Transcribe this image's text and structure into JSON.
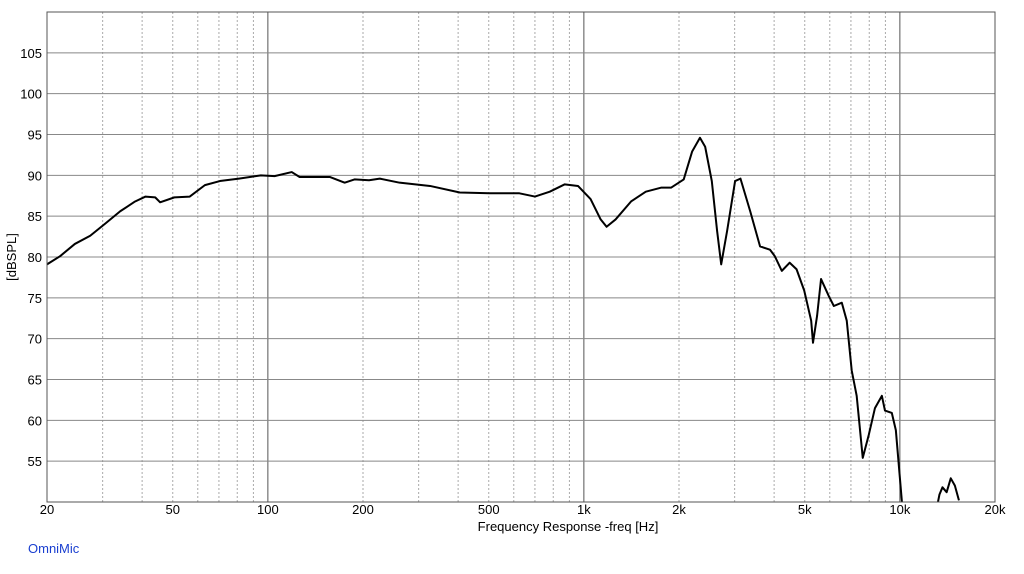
{
  "chart_data": {
    "type": "line",
    "xlabel": "Frequency Response -freq [Hz]",
    "ylabel": "[dBSPL]",
    "footer": "OmniMic",
    "xscale": "log",
    "xlim": [
      20,
      20000
    ],
    "ylim": [
      50,
      110
    ],
    "xticks": [
      20,
      50,
      100,
      200,
      500,
      {
        "value": 1000,
        "label": "1k"
      },
      {
        "value": 2000,
        "label": "2k"
      },
      {
        "value": 5000,
        "label": "5k"
      },
      {
        "value": 10000,
        "label": "10k"
      },
      {
        "value": 20000,
        "label": "20k"
      }
    ],
    "xminor": [
      30,
      40,
      60,
      70,
      80,
      90,
      300,
      400,
      600,
      700,
      800,
      900,
      3000,
      4000,
      6000,
      7000,
      8000,
      9000
    ],
    "xmajor_grid": [
      100,
      1000,
      10000
    ],
    "yticks": [
      55,
      60,
      65,
      70,
      75,
      80,
      85,
      90,
      95,
      100,
      105
    ],
    "grid": true,
    "series": [
      {
        "color": "#000000",
        "x": [
          20,
          22,
          24.5,
          27.4,
          30.6,
          34.1,
          38,
          41,
          44,
          45.6,
          50.6,
          56.6,
          63.2,
          70.5,
          81,
          95,
          105,
          119,
          126,
          157,
          175,
          188,
          209,
          226,
          261,
          326,
          405,
          503,
          625,
          700,
          780,
          870,
          958,
          1050,
          1130,
          1180,
          1260,
          1410,
          1570,
          1760,
          1890,
          2070,
          2200,
          2330,
          2420,
          2540,
          2640,
          2720,
          2840,
          3010,
          3130,
          3360,
          3610,
          3880,
          4020,
          4230,
          4480,
          4710,
          4980,
          5240,
          5310,
          5470,
          5630,
          5960,
          6180,
          6550,
          6790,
          7040,
          7300,
          7630,
          7970,
          8340,
          8770,
          8970,
          9430,
          9710,
          10150,
          12000,
          13200,
          13340,
          13640,
          14060,
          14490,
          14930,
          15380
        ],
        "values": [
          79.1,
          80.1,
          81.6,
          82.6,
          84.1,
          85.6,
          86.8,
          87.4,
          87.3,
          86.7,
          87.3,
          87.4,
          88.8,
          89.3,
          89.6,
          90.0,
          89.9,
          90.4,
          89.8,
          89.8,
          89.1,
          89.5,
          89.4,
          89.6,
          89.1,
          88.7,
          87.9,
          87.8,
          87.8,
          87.4,
          88.0,
          88.9,
          88.7,
          87.1,
          84.6,
          83.7,
          84.6,
          86.8,
          88.0,
          88.5,
          88.5,
          89.5,
          92.9,
          94.6,
          93.5,
          89.3,
          83.2,
          79.1,
          83.2,
          89.3,
          89.6,
          85.6,
          81.3,
          80.9,
          80.1,
          78.3,
          79.3,
          78.5,
          75.9,
          72.2,
          69.5,
          72.8,
          77.3,
          75.2,
          74.0,
          74.4,
          72.2,
          66.1,
          63.0,
          55.4,
          58.2,
          61.5,
          63.0,
          61.2,
          60.9,
          58.8,
          50.0,
          null,
          50.0,
          50.9,
          51.8,
          51.2,
          52.9,
          52.0,
          50.2
        ]
      }
    ]
  }
}
